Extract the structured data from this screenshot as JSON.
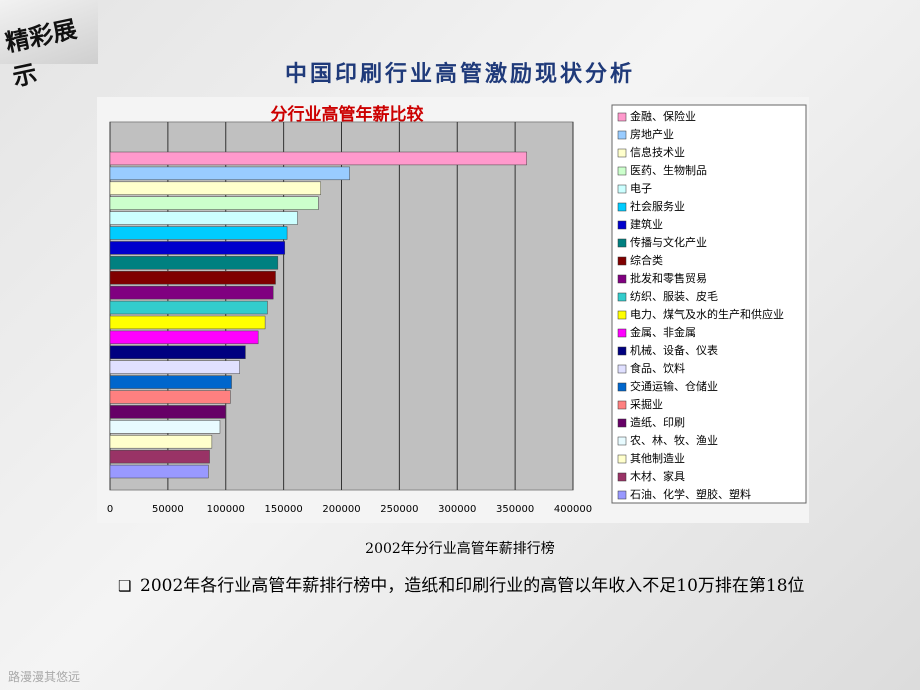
{
  "slide": {
    "badge": "精彩展示",
    "title": "中国印刷行业高管激励现状分析",
    "caption": "2002年分行业高管年薪排行榜",
    "bullet": "2002年各行业高管年薪排行榜中，造纸和印刷行业的高管以年收入不足10万排在第18位",
    "footer": "路漫漫其悠远"
  },
  "chart_data": {
    "type": "hbar",
    "title": "分行业高管年薪比较",
    "categories": [
      "金融、保险业",
      "房地产业",
      "信息技术业",
      "医药、生物制品",
      "电子",
      "社会服务业",
      "建筑业",
      "传播与文化产业",
      "综合类",
      "批发和零售贸易",
      "纺织、服装、皮毛",
      "电力、煤气及水的生产和供应业",
      "金属、非金属",
      "机械、设备、仪表",
      "食品、饮料",
      "交通运输、仓储业",
      "采掘业",
      "造纸、印刷",
      "农、林、牧、渔业",
      "其他制造业",
      "木材、家具",
      "石油、化学、塑胶、塑料"
    ],
    "values": [
      360000,
      207000,
      182000,
      180000,
      162000,
      153000,
      151000,
      145000,
      143000,
      141000,
      136000,
      134000,
      128000,
      117000,
      112000,
      105000,
      104000,
      100000,
      95000,
      88000,
      86000,
      85000
    ],
    "colors": [
      "#ff99cc",
      "#99ccff",
      "#ffffcc",
      "#ccffcc",
      "#ccffff",
      "#00ccff",
      "#0000cc",
      "#008080",
      "#800000",
      "#800080",
      "#33cccc",
      "#ffff00",
      "#ff00ff",
      "#000080",
      "#e0e0ff",
      "#0066cc",
      "#ff8080",
      "#660066",
      "#e8fbff",
      "#ffffcc",
      "#993366",
      "#9999ff"
    ],
    "xlim": [
      0,
      400000
    ],
    "xticks": [
      0,
      50000,
      100000,
      150000,
      200000,
      250000,
      300000,
      350000,
      400000
    ],
    "grid": true
  }
}
